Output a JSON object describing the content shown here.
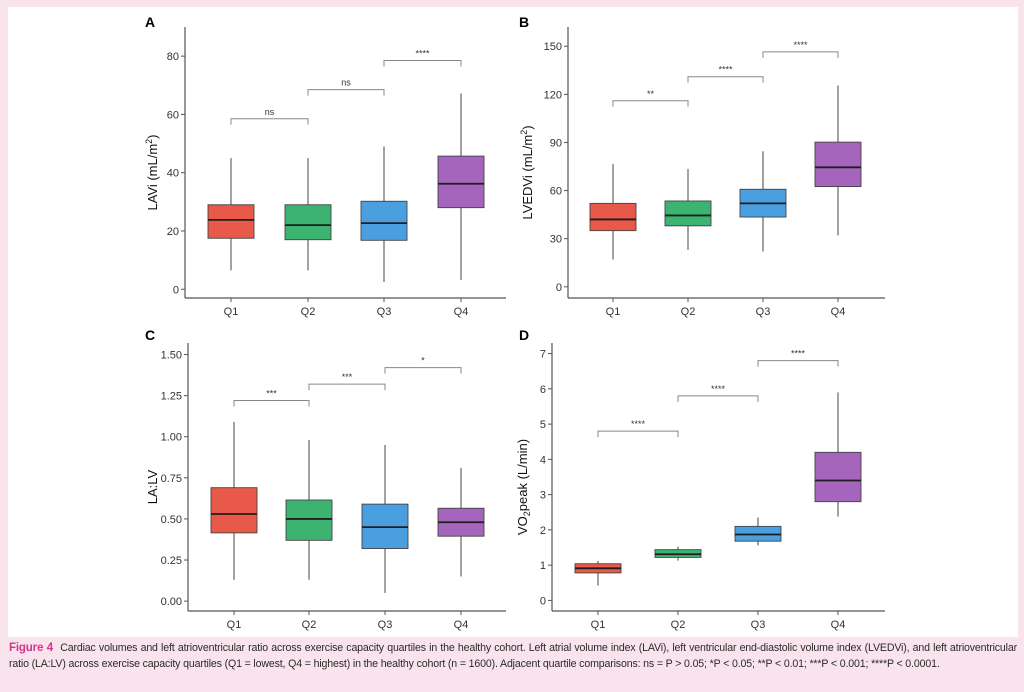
{
  "figure": {
    "caption_label": "Figure 4",
    "caption_text": "Cardiac volumes and left atrioventricular ratio across exercise capacity quartiles in the healthy cohort. Left atrial volume index (LAVi), left ventricular end-diastolic volume index (LVEDVi), and left atrioventricular ratio (LA:LV) across exercise capacity quartiles (Q1 = lowest, Q4 = highest) in the healthy cohort (n = 1600). Adjacent quartile comparisons: ns = P > 0.05; *P < 0.05; **P < 0.01; ***P < 0.001; ****P < 0.0001.",
    "colors": {
      "Q1": "#e8594a",
      "Q2": "#3cb371",
      "Q3": "#4a9fe0",
      "Q4": "#a565bd",
      "background": "#f9e4ee",
      "caption_label": "#d6338a"
    }
  },
  "chart_data": [
    {
      "panel": "A",
      "type": "box",
      "ylabel": "LAVi (mL/m²)",
      "ylabel_main": "LAVi (mL/m",
      "ylabel_sup": "2",
      "ylabel_end": ")",
      "xlabel": "",
      "categories": [
        "Q1",
        "Q2",
        "Q3",
        "Q4"
      ],
      "ylim": [
        -3,
        90
      ],
      "yticks": [
        0,
        20,
        40,
        60,
        80
      ],
      "ytick_labels": [
        "0",
        "20",
        "40",
        "60",
        "80"
      ],
      "boxes": [
        {
          "min": 6.5,
          "q1": 17.5,
          "median": 23.8,
          "q3": 29,
          "max": 45
        },
        {
          "min": 6.5,
          "q1": 17,
          "median": 22,
          "q3": 29,
          "max": 45
        },
        {
          "min": 2.5,
          "q1": 16.8,
          "median": 22.7,
          "q3": 30.2,
          "max": 49
        },
        {
          "min": 3.2,
          "q1": 28,
          "median": 36.2,
          "q3": 45.7,
          "max": 67.2
        }
      ],
      "comparisons": [
        {
          "from": "Q1",
          "to": "Q2",
          "label": "ns",
          "y": 58.5
        },
        {
          "from": "Q2",
          "to": "Q3",
          "label": "ns",
          "y": 68.5
        },
        {
          "from": "Q3",
          "to": "Q4",
          "label": "****",
          "y": 78.5
        }
      ]
    },
    {
      "panel": "B",
      "type": "box",
      "ylabel": "LVEDVi (mL/m²)",
      "ylabel_main": "LVEDVi (mL/m",
      "ylabel_sup": "2",
      "ylabel_end": ")",
      "xlabel": "",
      "categories": [
        "Q1",
        "Q2",
        "Q3",
        "Q4"
      ],
      "ylim": [
        -7,
        162
      ],
      "yticks": [
        0,
        30,
        60,
        90,
        120,
        150
      ],
      "ytick_labels": [
        "0",
        "30",
        "60",
        "90",
        "120",
        "150"
      ],
      "boxes": [
        {
          "min": 17,
          "q1": 35,
          "median": 42,
          "q3": 52,
          "max": 76.5
        },
        {
          "min": 23,
          "q1": 38,
          "median": 44.5,
          "q3": 53.5,
          "max": 73.5
        },
        {
          "min": 22,
          "q1": 43.5,
          "median": 52,
          "q3": 60.8,
          "max": 84.5
        },
        {
          "min": 32,
          "q1": 62.5,
          "median": 74.5,
          "q3": 90.2,
          "max": 125.5
        }
      ],
      "comparisons": [
        {
          "from": "Q1",
          "to": "Q2",
          "label": "**",
          "y": 116
        },
        {
          "from": "Q2",
          "to": "Q3",
          "label": "****",
          "y": 131
        },
        {
          "from": "Q3",
          "to": "Q4",
          "label": "****",
          "y": 146.5
        }
      ]
    },
    {
      "panel": "C",
      "type": "box",
      "ylabel": "LA:LV",
      "ylabel_main": "LA:LV",
      "ylabel_sup": "",
      "ylabel_end": "",
      "xlabel": "",
      "categories": [
        "Q1",
        "Q2",
        "Q3",
        "Q4"
      ],
      "ylim": [
        -0.06,
        1.57
      ],
      "yticks": [
        0,
        0.25,
        0.5,
        0.75,
        1.0,
        1.25,
        1.5
      ],
      "ytick_labels": [
        "0.00",
        "0.25",
        "0.50",
        "0.75",
        "1.00",
        "1.25",
        "1.50"
      ],
      "boxes": [
        {
          "min": 0.13,
          "q1": 0.415,
          "median": 0.53,
          "q3": 0.69,
          "max": 1.09
        },
        {
          "min": 0.13,
          "q1": 0.37,
          "median": 0.5,
          "q3": 0.615,
          "max": 0.98
        },
        {
          "min": 0.05,
          "q1": 0.32,
          "median": 0.45,
          "q3": 0.59,
          "max": 0.95
        },
        {
          "min": 0.15,
          "q1": 0.395,
          "median": 0.48,
          "q3": 0.565,
          "max": 0.81
        }
      ],
      "comparisons": [
        {
          "from": "Q1",
          "to": "Q2",
          "label": "***",
          "y": 1.22
        },
        {
          "from": "Q2",
          "to": "Q3",
          "label": "***",
          "y": 1.32
        },
        {
          "from": "Q3",
          "to": "Q4",
          "label": "*",
          "y": 1.42
        }
      ]
    },
    {
      "panel": "D",
      "type": "box",
      "ylabel": "VO₂peak (L/min)",
      "ylabel_main": "VO",
      "ylabel_sub": "2",
      "ylabel_end": "peak (L/min)",
      "xlabel": "",
      "categories": [
        "Q1",
        "Q2",
        "Q3",
        "Q4"
      ],
      "ylim": [
        -0.3,
        7.3
      ],
      "yticks": [
        0,
        1,
        2,
        3,
        4,
        5,
        6,
        7
      ],
      "ytick_labels": [
        "0",
        "1",
        "2",
        "3",
        "4",
        "5",
        "6",
        "7"
      ],
      "boxes": [
        {
          "min": 0.42,
          "q1": 0.78,
          "median": 0.91,
          "q3": 1.04,
          "max": 1.12
        },
        {
          "min": 1.13,
          "q1": 1.22,
          "median": 1.31,
          "q3": 1.44,
          "max": 1.53
        },
        {
          "min": 1.56,
          "q1": 1.68,
          "median": 1.87,
          "q3": 2.1,
          "max": 2.35
        },
        {
          "min": 2.38,
          "q1": 2.8,
          "median": 3.4,
          "q3": 4.2,
          "max": 5.9
        }
      ],
      "comparisons": [
        {
          "from": "Q1",
          "to": "Q2",
          "label": "****",
          "y": 4.8
        },
        {
          "from": "Q2",
          "to": "Q3",
          "label": "****",
          "y": 5.8
        },
        {
          "from": "Q3",
          "to": "Q4",
          "label": "****",
          "y": 6.8
        }
      ]
    }
  ]
}
